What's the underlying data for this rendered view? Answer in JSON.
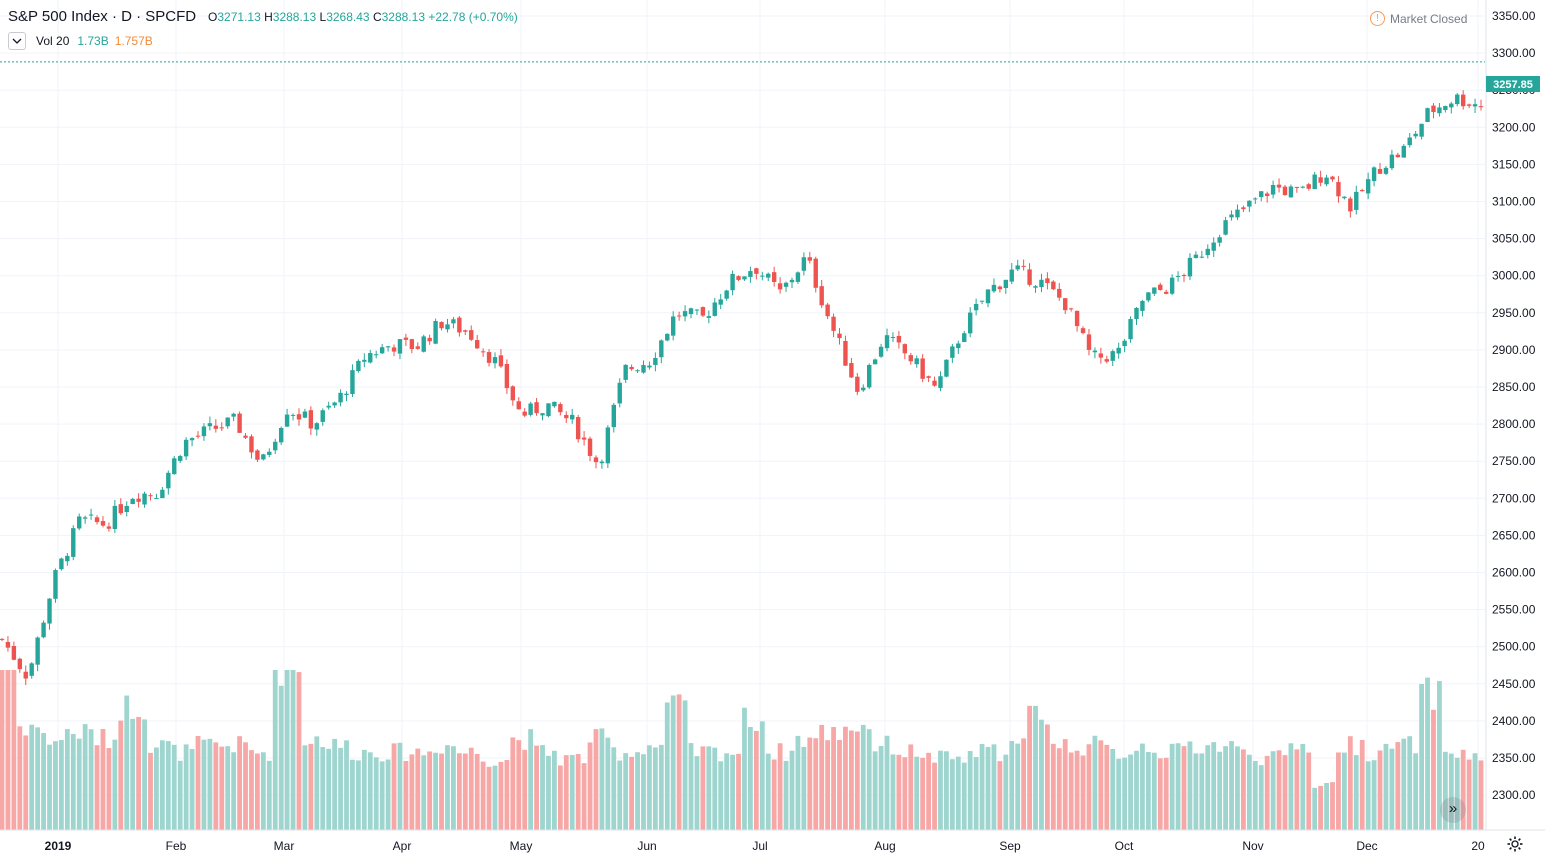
{
  "header": {
    "symbol_line": "S&P 500 Index · D · SPCFD",
    "open_label": "O",
    "open": "3271.13",
    "high_label": "H",
    "high": "3288.13",
    "low_label": "L",
    "low": "3268.43",
    "close_label": "C",
    "close": "3288.13",
    "change": "+22.78 (+0.70%)"
  },
  "volume_indicator": {
    "label": "Vol 20",
    "value": "1.73B",
    "ma_value": "1.757B"
  },
  "market_status": "Market Closed",
  "last_price": "3257.85",
  "colors": {
    "up": "#26a69a",
    "down": "#ef5350",
    "vol_up": "#9fd5cf",
    "vol_down": "#f6a7a6",
    "grid": "#f0f3fa",
    "price_tag": "#26a69a"
  },
  "chart_data": {
    "type": "candlestick",
    "title": "S&P 500 Index · D · SPCFD",
    "y_ticks": [
      2300,
      2350,
      2400,
      2450,
      2500,
      2550,
      2600,
      2650,
      2700,
      2750,
      2800,
      2850,
      2900,
      2950,
      3000,
      3050,
      3100,
      3150,
      3200,
      3250,
      3300,
      3350
    ],
    "ylim": [
      2260,
      3365
    ],
    "x_ticks": [
      "2019",
      "Feb",
      "Mar",
      "Apr",
      "May",
      "Jun",
      "Jul",
      "Aug",
      "Sep",
      "Oct",
      "Nov",
      "Dec",
      "20"
    ],
    "grid": true,
    "series": [
      {
        "name": "Price",
        "description": "daily close, sampled",
        "x": [
          "2019-01-01",
          "2019-01-04",
          "2019-01-10",
          "2019-01-18",
          "2019-01-25",
          "2019-02-01",
          "2019-02-08",
          "2019-02-15",
          "2019-02-22",
          "2019-03-01",
          "2019-03-08",
          "2019-03-15",
          "2019-03-22",
          "2019-03-29",
          "2019-04-05",
          "2019-04-12",
          "2019-04-19",
          "2019-04-26",
          "2019-05-01",
          "2019-05-07",
          "2019-05-13",
          "2019-05-20",
          "2019-05-27",
          "2019-06-03",
          "2019-06-07",
          "2019-06-14",
          "2019-06-21",
          "2019-06-28",
          "2019-07-05",
          "2019-07-12",
          "2019-07-19",
          "2019-07-26",
          "2019-08-02",
          "2019-08-05",
          "2019-08-09",
          "2019-08-16",
          "2019-08-23",
          "2019-08-30",
          "2019-09-06",
          "2019-09-13",
          "2019-09-20",
          "2019-09-27",
          "2019-10-02",
          "2019-10-08",
          "2019-10-11",
          "2019-10-18",
          "2019-10-25",
          "2019-11-01",
          "2019-11-08",
          "2019-11-15",
          "2019-11-22",
          "2019-11-29",
          "2019-12-03",
          "2019-12-06",
          "2019-12-13",
          "2019-12-20",
          "2019-12-27",
          "2019-12-31"
        ],
        "values": [
          2510,
          2460,
          2590,
          2670,
          2665,
          2705,
          2708,
          2775,
          2792,
          2804,
          2745,
          2822,
          2800,
          2834,
          2892,
          2907,
          2905,
          2939,
          2923,
          2884,
          2812,
          2826,
          2802,
          2745,
          2873,
          2887,
          2950,
          2942,
          2990,
          3013,
          2976,
          3025,
          2930,
          2845,
          2918,
          2889,
          2847,
          2926,
          2978,
          3007,
          2992,
          2962,
          2888,
          2895,
          2970,
          2986,
          3022,
          3066,
          3093,
          3120,
          3110,
          3141,
          3092,
          3145,
          3169,
          3221,
          3240,
          3230
        ]
      }
    ],
    "volume_series": {
      "name": "Vol 20",
      "description": "daily volume, sampled, billions",
      "values": [
        2.6,
        1.6,
        1.4,
        1.5,
        1.4,
        1.9,
        1.3,
        1.2,
        1.3,
        1.3,
        1.2,
        2.5,
        1.4,
        1.3,
        1.2,
        1.2,
        1.2,
        1.3,
        1.2,
        1.1,
        1.4,
        1.2,
        1.1,
        1.4,
        1.2,
        1.3,
        1.9,
        1.2,
        1.2,
        1.7,
        1.2,
        1.4,
        1.5,
        1.6,
        1.3,
        1.2,
        1.1,
        1.1,
        1.2,
        1.3,
        1.8,
        1.3,
        1.3,
        1.2,
        1.3,
        1.2,
        1.3,
        1.3,
        1.2,
        1.1,
        1.3,
        0.7,
        1.3,
        1.2,
        1.3,
        2.1,
        1.2,
        1.1
      ]
    }
  }
}
